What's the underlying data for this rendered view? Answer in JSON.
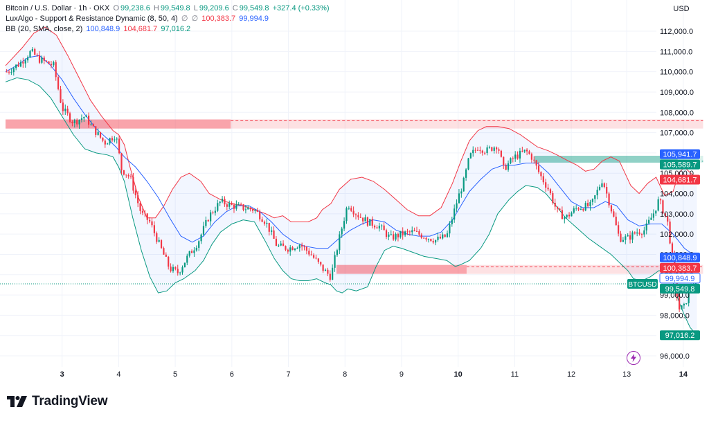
{
  "legend": {
    "title": "Bitcoin / U.S. Dollar · 1h · OKX",
    "open_label": "O",
    "open": "99,238.6",
    "high_label": "H",
    "high": "99,549.8",
    "low_label": "L",
    "low": "99,209.6",
    "close_label": "C",
    "close": "99,549.8",
    "change": "+327.4 (+0.33%)",
    "indicator1_name": "LuxAlgo - Support & Resistance Dynamic (8, 50, 4)",
    "indicator1_empty1": "∅",
    "indicator1_empty2": "∅",
    "indicator1_v1": "100,383.7",
    "indicator1_v2": "99,994.9",
    "indicator2_name": "BB (20, SMA, close, 2)",
    "indicator2_basis": "100,848.9",
    "indicator2_upper": "104,681.7",
    "indicator2_lower": "97,016.2"
  },
  "currency": "USD",
  "brand": "TradingView",
  "colors": {
    "up": "#089981",
    "down": "#f23645",
    "basis": "#2962ff",
    "bb_upper": "#f23645",
    "bb_lower": "#089981",
    "bb_fill": "#2962ff",
    "resistance": "#f23645",
    "support": "#089981"
  },
  "chart_data": {
    "type": "candlestick",
    "symbol": "BTCUSD",
    "interval": "1h",
    "y_range": [
      95500,
      112800
    ],
    "y_ticks": [
      "96,000.0",
      "97,000.0",
      "98,000.0",
      "99,000.0",
      "100,000.0",
      "101,000.0",
      "102,000.0",
      "103,000.0",
      "104,000.0",
      "105,000.0",
      "106,000.0",
      "107,000.0",
      "108,000.0",
      "109,000.0",
      "110,000.0",
      "111,000.0",
      "112,000.0"
    ],
    "y_tick_values": [
      96000,
      97000,
      98000,
      99000,
      100000,
      101000,
      102000,
      103000,
      104000,
      105000,
      106000,
      107000,
      108000,
      109000,
      110000,
      111000,
      112000
    ],
    "x_labels": [
      "3",
      "4",
      "5",
      "6",
      "7",
      "8",
      "9",
      "10",
      "11",
      "12",
      "13",
      "14"
    ],
    "x_label_positions": [
      2.0,
      3.0,
      4.0,
      5.0,
      6.0,
      7.0,
      8.0,
      9.0,
      10.0,
      11.0,
      11.98,
      12.98
    ],
    "x_bold": [
      "3",
      "10",
      "14"
    ],
    "x_range": [
      1.0,
      13.3
    ],
    "price_path": [
      [
        1.02,
        110000
      ],
      [
        1.25,
        110400
      ],
      [
        1.45,
        111000
      ],
      [
        1.6,
        110600
      ],
      [
        1.85,
        110300
      ],
      [
        2.0,
        108200
      ],
      [
        2.2,
        107500
      ],
      [
        2.4,
        107800
      ],
      [
        2.55,
        107200
      ],
      [
        2.75,
        106500
      ],
      [
        2.95,
        106900
      ],
      [
        3.05,
        105200
      ],
      [
        3.2,
        104800
      ],
      [
        3.4,
        103000
      ],
      [
        3.55,
        102600
      ],
      [
        3.7,
        101600
      ],
      [
        3.9,
        100300
      ],
      [
        4.05,
        100100
      ],
      [
        4.2,
        100800
      ],
      [
        4.4,
        101600
      ],
      [
        4.6,
        102900
      ],
      [
        4.8,
        103600
      ],
      [
        5.0,
        103400
      ],
      [
        5.2,
        103300
      ],
      [
        5.4,
        103200
      ],
      [
        5.6,
        102600
      ],
      [
        5.8,
        101400
      ],
      [
        6.0,
        101300
      ],
      [
        6.2,
        101500
      ],
      [
        6.4,
        101000
      ],
      [
        6.6,
        100300
      ],
      [
        6.75,
        99900
      ],
      [
        6.9,
        101800
      ],
      [
        7.05,
        103500
      ],
      [
        7.2,
        103000
      ],
      [
        7.4,
        102600
      ],
      [
        7.6,
        102400
      ],
      [
        7.8,
        101800
      ],
      [
        8.0,
        102000
      ],
      [
        8.2,
        102100
      ],
      [
        8.4,
        101900
      ],
      [
        8.6,
        101700
      ],
      [
        8.8,
        101900
      ],
      [
        9.0,
        103800
      ],
      [
        9.1,
        104600
      ],
      [
        9.2,
        105800
      ],
      [
        9.35,
        106300
      ],
      [
        9.5,
        106100
      ],
      [
        9.7,
        106400
      ],
      [
        9.8,
        105200
      ],
      [
        10.0,
        105800
      ],
      [
        10.2,
        106100
      ],
      [
        10.3,
        105800
      ],
      [
        10.45,
        104900
      ],
      [
        10.6,
        104200
      ],
      [
        10.75,
        103100
      ],
      [
        10.9,
        102800
      ],
      [
        11.1,
        103300
      ],
      [
        11.35,
        103400
      ],
      [
        11.55,
        104700
      ],
      [
        11.7,
        103300
      ],
      [
        11.85,
        101800
      ],
      [
        12.0,
        101800
      ],
      [
        12.15,
        102100
      ],
      [
        12.3,
        102200
      ],
      [
        12.45,
        103000
      ],
      [
        12.55,
        103700
      ],
      [
        12.7,
        102600
      ],
      [
        12.8,
        100600
      ],
      [
        12.9,
        98300
      ],
      [
        13.0,
        98400
      ],
      [
        13.1,
        99400
      ],
      [
        13.2,
        99550
      ]
    ],
    "bb_upper_path": [
      [
        1.0,
        110300
      ],
      [
        1.3,
        111200
      ],
      [
        1.5,
        111900
      ],
      [
        1.7,
        112200
      ],
      [
        1.9,
        111800
      ],
      [
        2.1,
        110800
      ],
      [
        2.3,
        109700
      ],
      [
        2.5,
        108600
      ],
      [
        2.7,
        107800
      ],
      [
        2.9,
        107100
      ],
      [
        3.0,
        106900
      ],
      [
        3.1,
        106400
      ],
      [
        3.2,
        105300
      ],
      [
        3.35,
        103800
      ],
      [
        3.5,
        102800
      ],
      [
        3.65,
        102800
      ],
      [
        3.8,
        103400
      ],
      [
        3.95,
        104200
      ],
      [
        4.1,
        104800
      ],
      [
        4.25,
        105000
      ],
      [
        4.45,
        104600
      ],
      [
        4.6,
        104000
      ],
      [
        4.8,
        103700
      ],
      [
        5.0,
        103500
      ],
      [
        5.2,
        103400
      ],
      [
        5.4,
        103200
      ],
      [
        5.6,
        103000
      ],
      [
        5.75,
        102800
      ],
      [
        5.9,
        102900
      ],
      [
        6.05,
        102600
      ],
      [
        6.2,
        102600
      ],
      [
        6.35,
        102600
      ],
      [
        6.5,
        102800
      ],
      [
        6.6,
        103200
      ],
      [
        6.75,
        103500
      ],
      [
        6.9,
        104200
      ],
      [
        7.1,
        104700
      ],
      [
        7.3,
        104800
      ],
      [
        7.5,
        104600
      ],
      [
        7.7,
        104200
      ],
      [
        7.9,
        103700
      ],
      [
        8.1,
        103200
      ],
      [
        8.3,
        102900
      ],
      [
        8.5,
        102900
      ],
      [
        8.7,
        103300
      ],
      [
        8.9,
        104500
      ],
      [
        9.05,
        105600
      ],
      [
        9.2,
        106600
      ],
      [
        9.35,
        107100
      ],
      [
        9.5,
        107300
      ],
      [
        9.7,
        107300
      ],
      [
        9.9,
        107200
      ],
      [
        10.1,
        106900
      ],
      [
        10.25,
        106600
      ],
      [
        10.4,
        106300
      ],
      [
        10.6,
        106100
      ],
      [
        10.75,
        105900
      ],
      [
        10.95,
        105600
      ],
      [
        11.1,
        105400
      ],
      [
        11.25,
        105100
      ],
      [
        11.4,
        105200
      ],
      [
        11.55,
        105600
      ],
      [
        11.7,
        105800
      ],
      [
        11.85,
        105600
      ],
      [
        11.95,
        105000
      ],
      [
        12.05,
        104400
      ],
      [
        12.2,
        104000
      ],
      [
        12.35,
        104500
      ],
      [
        12.5,
        104800
      ],
      [
        12.65,
        103900
      ],
      [
        12.8,
        104100
      ],
      [
        12.9,
        105000
      ],
      [
        13.0,
        105300
      ],
      [
        13.15,
        104900
      ],
      [
        13.22,
        104700
      ]
    ],
    "bb_basis_path": [
      [
        1.0,
        110000
      ],
      [
        1.2,
        110300
      ],
      [
        1.4,
        110700
      ],
      [
        1.6,
        110800
      ],
      [
        1.8,
        110300
      ],
      [
        2.0,
        109600
      ],
      [
        2.2,
        108700
      ],
      [
        2.4,
        107900
      ],
      [
        2.6,
        107200
      ],
      [
        2.8,
        106700
      ],
      [
        2.95,
        106300
      ],
      [
        3.1,
        105800
      ],
      [
        3.3,
        105300
      ],
      [
        3.5,
        104600
      ],
      [
        3.7,
        103800
      ],
      [
        3.9,
        102800
      ],
      [
        4.1,
        101900
      ],
      [
        4.3,
        101600
      ],
      [
        4.5,
        101900
      ],
      [
        4.7,
        102600
      ],
      [
        4.9,
        103100
      ],
      [
        5.1,
        103400
      ],
      [
        5.3,
        103400
      ],
      [
        5.5,
        103100
      ],
      [
        5.7,
        102600
      ],
      [
        5.9,
        102000
      ],
      [
        6.1,
        101600
      ],
      [
        6.3,
        101400
      ],
      [
        6.5,
        101300
      ],
      [
        6.7,
        101300
      ],
      [
        6.9,
        101800
      ],
      [
        7.1,
        102200
      ],
      [
        7.3,
        102500
      ],
      [
        7.5,
        102700
      ],
      [
        7.7,
        102600
      ],
      [
        7.9,
        102200
      ],
      [
        8.1,
        102000
      ],
      [
        8.3,
        101900
      ],
      [
        8.5,
        101900
      ],
      [
        8.7,
        102100
      ],
      [
        8.9,
        102700
      ],
      [
        9.05,
        103400
      ],
      [
        9.2,
        104100
      ],
      [
        9.4,
        104700
      ],
      [
        9.6,
        105200
      ],
      [
        9.8,
        105400
      ],
      [
        10.0,
        105400
      ],
      [
        10.2,
        105500
      ],
      [
        10.4,
        105500
      ],
      [
        10.6,
        105000
      ],
      [
        10.8,
        104300
      ],
      [
        11.0,
        103600
      ],
      [
        11.2,
        103300
      ],
      [
        11.4,
        103300
      ],
      [
        11.6,
        103600
      ],
      [
        11.8,
        103400
      ],
      [
        12.0,
        102700
      ],
      [
        12.2,
        102400
      ],
      [
        12.4,
        102500
      ],
      [
        12.6,
        102500
      ],
      [
        12.8,
        102000
      ],
      [
        13.0,
        101300
      ],
      [
        13.22,
        100850
      ]
    ],
    "bb_lower_path": [
      [
        1.0,
        109500
      ],
      [
        1.2,
        109700
      ],
      [
        1.4,
        109600
      ],
      [
        1.6,
        109300
      ],
      [
        1.8,
        108700
      ],
      [
        2.0,
        107800
      ],
      [
        2.2,
        106900
      ],
      [
        2.4,
        106200
      ],
      [
        2.6,
        106000
      ],
      [
        2.8,
        105900
      ],
      [
        2.9,
        105800
      ],
      [
        3.0,
        105300
      ],
      [
        3.1,
        104600
      ],
      [
        3.25,
        102800
      ],
      [
        3.4,
        101200
      ],
      [
        3.55,
        99900
      ],
      [
        3.7,
        99100
      ],
      [
        3.85,
        99200
      ],
      [
        4.0,
        99600
      ],
      [
        4.15,
        99800
      ],
      [
        4.35,
        100200
      ],
      [
        4.5,
        100700
      ],
      [
        4.65,
        101500
      ],
      [
        4.8,
        102100
      ],
      [
        5.0,
        102500
      ],
      [
        5.2,
        102700
      ],
      [
        5.4,
        102600
      ],
      [
        5.6,
        101600
      ],
      [
        5.75,
        100800
      ],
      [
        5.9,
        100200
      ],
      [
        6.05,
        99800
      ],
      [
        6.2,
        99700
      ],
      [
        6.35,
        99700
      ],
      [
        6.5,
        99800
      ],
      [
        6.65,
        99600
      ],
      [
        6.75,
        99500
      ],
      [
        6.85,
        99200
      ],
      [
        6.95,
        99100
      ],
      [
        7.05,
        99300
      ],
      [
        7.2,
        99200
      ],
      [
        7.4,
        99400
      ],
      [
        7.55,
        100400
      ],
      [
        7.7,
        101200
      ],
      [
        7.85,
        101400
      ],
      [
        8.0,
        101300
      ],
      [
        8.2,
        101100
      ],
      [
        8.4,
        100900
      ],
      [
        8.6,
        100800
      ],
      [
        8.8,
        100700
      ],
      [
        8.95,
        100400
      ],
      [
        9.05,
        100500
      ],
      [
        9.2,
        100700
      ],
      [
        9.4,
        101300
      ],
      [
        9.55,
        102000
      ],
      [
        9.7,
        103000
      ],
      [
        9.9,
        103700
      ],
      [
        10.05,
        104100
      ],
      [
        10.2,
        104400
      ],
      [
        10.4,
        104300
      ],
      [
        10.55,
        104000
      ],
      [
        10.7,
        103500
      ],
      [
        10.9,
        102800
      ],
      [
        11.1,
        102300
      ],
      [
        11.3,
        101800
      ],
      [
        11.5,
        101400
      ],
      [
        11.7,
        101000
      ],
      [
        11.85,
        100600
      ],
      [
        12.0,
        100200
      ],
      [
        12.1,
        99800
      ],
      [
        12.25,
        99700
      ],
      [
        12.4,
        99900
      ],
      [
        12.55,
        100200
      ],
      [
        12.7,
        100100
      ],
      [
        12.8,
        99600
      ],
      [
        12.9,
        98700
      ],
      [
        13.0,
        98000
      ],
      [
        13.1,
        97400
      ],
      [
        13.22,
        97016
      ]
    ],
    "zones": [
      {
        "type": "resistance",
        "x_start": 1.0,
        "x_end": 4.98,
        "x_line_end": 13.33,
        "top": 107650,
        "bottom": 107200,
        "line": 107580
      },
      {
        "type": "support",
        "x_start": 10.35,
        "x_end": 12.88,
        "x_line_end": 13.33,
        "top": 105860,
        "bottom": 105520,
        "line": 105589.7
      },
      {
        "type": "resistance",
        "x_start": 6.85,
        "x_end": 9.15,
        "x_line_end": 13.33,
        "top": 100480,
        "bottom": 100040,
        "line": 100383.7
      }
    ],
    "current_price_line": 99549.8,
    "axis_badges": [
      {
        "text": "105,941.7",
        "value": 105941.7,
        "color": "#2962ff"
      },
      {
        "text": "105,589.7",
        "value": 105589.7,
        "color": "#089981"
      },
      {
        "text": "104,681.7",
        "value": 104681.7,
        "color": "#f23645"
      },
      {
        "text": "100,848.9",
        "value": 100848.9,
        "color": "#2962ff"
      },
      {
        "text": "100,383.7",
        "value": 100383.7,
        "color": "#f23645"
      },
      {
        "text": "99,994.9",
        "value": 99994.9,
        "color": "#2962ff",
        "outline": true
      },
      {
        "text": "99,549.8",
        "value": 99549.8,
        "color": "#089981"
      },
      {
        "text": "97,016.2",
        "value": 97016.2,
        "color": "#089981"
      }
    ],
    "symbol_badge": "BTCUSD"
  }
}
